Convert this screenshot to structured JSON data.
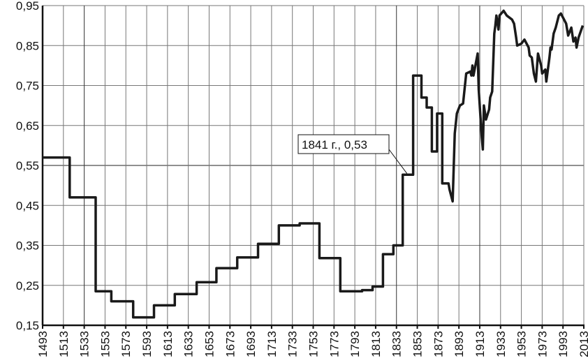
{
  "chart_data": {
    "type": "line",
    "title": "",
    "xlabel": "",
    "ylabel": "",
    "xlim": [
      1493,
      2013
    ],
    "ylim": [
      0.15,
      0.95
    ],
    "grid": true,
    "line_color": "#1a1a1a",
    "x_ticks": [
      "1493",
      "1513",
      "1533",
      "1553",
      "1573",
      "1593",
      "1613",
      "1633",
      "1653",
      "1673",
      "1693",
      "1713",
      "1733",
      "1753",
      "1773",
      "1793",
      "1813",
      "1833",
      "1853",
      "1873",
      "1893",
      "1913",
      "1933",
      "1953",
      "1973",
      "1993",
      "2013"
    ],
    "y_ticks": [
      "0,15",
      "0,25",
      "0,35",
      "0,45",
      "0,55",
      "0,65",
      "0,75",
      "0,85",
      "0,95"
    ],
    "annotation": {
      "text": "1841 г., 0,53",
      "x": 1841,
      "y": 0.53
    },
    "points": [
      [
        1493,
        0.57
      ],
      [
        1519,
        0.57
      ],
      [
        1519,
        0.47
      ],
      [
        1544,
        0.47
      ],
      [
        1544,
        0.235
      ],
      [
        1559,
        0.235
      ],
      [
        1559,
        0.21
      ],
      [
        1580,
        0.21
      ],
      [
        1580,
        0.17
      ],
      [
        1600,
        0.17
      ],
      [
        1600,
        0.2
      ],
      [
        1620,
        0.2
      ],
      [
        1620,
        0.228
      ],
      [
        1641,
        0.228
      ],
      [
        1641,
        0.258
      ],
      [
        1660,
        0.258
      ],
      [
        1660,
        0.293
      ],
      [
        1680,
        0.293
      ],
      [
        1680,
        0.32
      ],
      [
        1700,
        0.32
      ],
      [
        1700,
        0.354
      ],
      [
        1720,
        0.354
      ],
      [
        1720,
        0.4
      ],
      [
        1740,
        0.4
      ],
      [
        1740,
        0.405
      ],
      [
        1759,
        0.405
      ],
      [
        1759,
        0.318
      ],
      [
        1779,
        0.318
      ],
      [
        1779,
        0.235
      ],
      [
        1800,
        0.235
      ],
      [
        1800,
        0.238
      ],
      [
        1810,
        0.238
      ],
      [
        1810,
        0.247
      ],
      [
        1820,
        0.247
      ],
      [
        1820,
        0.328
      ],
      [
        1830,
        0.328
      ],
      [
        1830,
        0.35
      ],
      [
        1839,
        0.35
      ],
      [
        1839,
        0.527
      ],
      [
        1849,
        0.527
      ],
      [
        1849,
        0.775
      ],
      [
        1857,
        0.775
      ],
      [
        1857,
        0.72
      ],
      [
        1862,
        0.72
      ],
      [
        1862,
        0.695
      ],
      [
        1867,
        0.695
      ],
      [
        1867,
        0.585
      ],
      [
        1872,
        0.585
      ],
      [
        1872,
        0.68
      ],
      [
        1877,
        0.68
      ],
      [
        1877,
        0.505
      ],
      [
        1883,
        0.505
      ],
      [
        1884,
        0.49
      ],
      [
        1886,
        0.47
      ],
      [
        1887,
        0.46
      ],
      [
        1889,
        0.63
      ],
      [
        1891,
        0.68
      ],
      [
        1894,
        0.7
      ],
      [
        1897,
        0.705
      ],
      [
        1900,
        0.78
      ],
      [
        1904,
        0.785
      ],
      [
        1905,
        0.775
      ],
      [
        1906,
        0.8
      ],
      [
        1907,
        0.775
      ],
      [
        1911,
        0.83
      ],
      [
        1912,
        0.74
      ],
      [
        1915,
        0.62
      ],
      [
        1916,
        0.59
      ],
      [
        1917,
        0.7
      ],
      [
        1919,
        0.665
      ],
      [
        1922,
        0.69
      ],
      [
        1923,
        0.72
      ],
      [
        1925,
        0.735
      ],
      [
        1927,
        0.88
      ],
      [
        1928,
        0.9
      ],
      [
        1929,
        0.925
      ],
      [
        1931,
        0.89
      ],
      [
        1932,
        0.925
      ],
      [
        1936,
        0.937
      ],
      [
        1939,
        0.925
      ],
      [
        1944,
        0.915
      ],
      [
        1946,
        0.905
      ],
      [
        1948,
        0.87
      ],
      [
        1949,
        0.85
      ],
      [
        1953,
        0.855
      ],
      [
        1956,
        0.865
      ],
      [
        1960,
        0.845
      ],
      [
        1961,
        0.825
      ],
      [
        1963,
        0.82
      ],
      [
        1965,
        0.78
      ],
      [
        1967,
        0.76
      ],
      [
        1969,
        0.83
      ],
      [
        1972,
        0.8
      ],
      [
        1973,
        0.78
      ],
      [
        1976,
        0.79
      ],
      [
        1977,
        0.76
      ],
      [
        1980,
        0.82
      ],
      [
        1981,
        0.845
      ],
      [
        1982,
        0.84
      ],
      [
        1984,
        0.88
      ],
      [
        1986,
        0.895
      ],
      [
        1989,
        0.925
      ],
      [
        1991,
        0.93
      ],
      [
        1993,
        0.92
      ],
      [
        1996,
        0.905
      ],
      [
        1998,
        0.875
      ],
      [
        2001,
        0.895
      ],
      [
        2003,
        0.86
      ],
      [
        2005,
        0.87
      ],
      [
        2006,
        0.845
      ],
      [
        2008,
        0.87
      ],
      [
        2012,
        0.9
      ]
    ]
  }
}
